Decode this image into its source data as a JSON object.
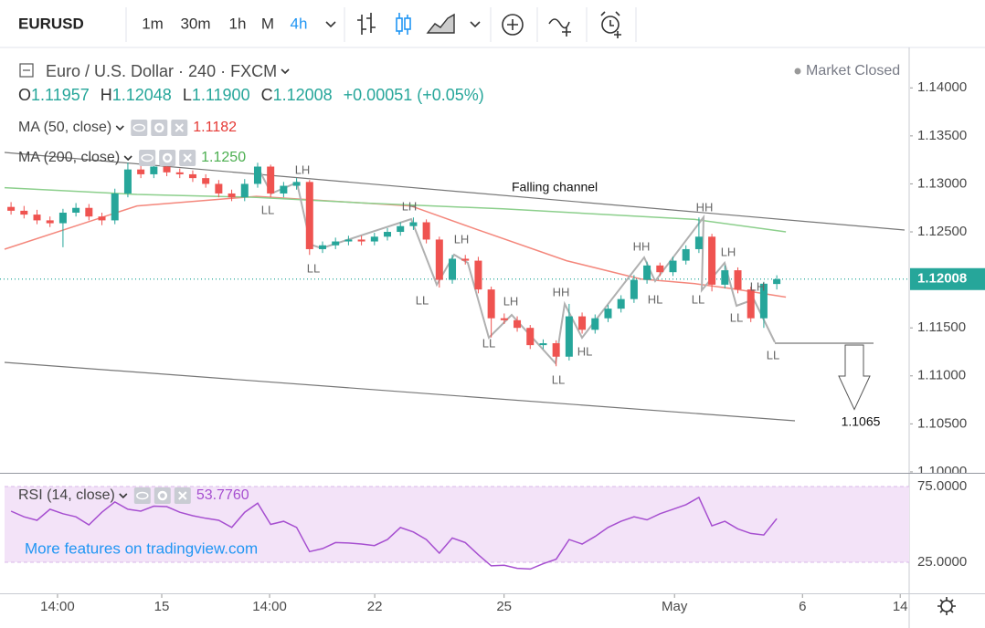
{
  "toolbar": {
    "symbol": "EURUSD",
    "intervals": [
      "1m",
      "30m",
      "1h",
      "M",
      "4h"
    ],
    "active_interval": "4h"
  },
  "chart_data": [
    {
      "type": "candlestick",
      "title": "Euro / U.S. Dollar · 240 · FXCM",
      "status": "Market Closed",
      "ohlc": [
        {
          "label": "O",
          "value": "1.11957"
        },
        {
          "label": "H",
          "value": "1.12048"
        },
        {
          "label": "L",
          "value": "1.11900"
        },
        {
          "label": "C",
          "value": "1.12008"
        }
      ],
      "change": "+0.00051 (+0.05%)",
      "open": [
        1.1276,
        1.1272,
        1.1268,
        1.1262,
        1.1259,
        1.127,
        1.1275,
        1.1266,
        1.1262,
        1.129,
        1.1315,
        1.131,
        1.1318,
        1.1312,
        1.131,
        1.1306,
        1.13,
        1.129,
        1.1286,
        1.13,
        1.1318,
        1.129,
        1.1298,
        1.1302,
        1.1232,
        1.1236,
        1.124,
        1.1242,
        1.124,
        1.1245,
        1.125,
        1.1256,
        1.126,
        1.1242,
        1.12,
        1.1222,
        1.122,
        1.119,
        1.116,
        1.1158,
        1.115,
        1.1132,
        1.1134,
        1.112,
        1.1162,
        1.1148,
        1.116,
        1.117,
        1.118,
        1.12,
        1.1215,
        1.1208,
        1.122,
        1.1232,
        1.1245,
        1.1195,
        1.121,
        1.119,
        1.116,
        1.11957
      ],
      "high": [
        1.1281,
        1.1277,
        1.1273,
        1.1266,
        1.1274,
        1.128,
        1.1279,
        1.127,
        1.1295,
        1.1322,
        1.132,
        1.1324,
        1.1322,
        1.1316,
        1.1314,
        1.131,
        1.1304,
        1.1294,
        1.1305,
        1.1322,
        1.132,
        1.1302,
        1.1306,
        1.1304,
        1.124,
        1.1244,
        1.1246,
        1.1246,
        1.1249,
        1.1254,
        1.126,
        1.1265,
        1.1263,
        1.1245,
        1.1226,
        1.1226,
        1.1224,
        1.1193,
        1.1165,
        1.1162,
        1.1153,
        1.1138,
        1.1137,
        1.1175,
        1.1166,
        1.1164,
        1.1174,
        1.1184,
        1.1205,
        1.1219,
        1.1218,
        1.1224,
        1.1236,
        1.1265,
        1.1248,
        1.1215,
        1.1213,
        1.1193,
        1.1198,
        1.12048
      ],
      "low": [
        1.1268,
        1.1264,
        1.1258,
        1.1255,
        1.1234,
        1.1266,
        1.1262,
        1.1257,
        1.1258,
        1.1286,
        1.1306,
        1.1306,
        1.1308,
        1.1306,
        1.1302,
        1.1296,
        1.1286,
        1.1282,
        1.1282,
        1.1296,
        1.1286,
        1.1286,
        1.1294,
        1.1226,
        1.1228,
        1.1232,
        1.1236,
        1.1236,
        1.1236,
        1.1241,
        1.1246,
        1.1252,
        1.1238,
        1.1192,
        1.1196,
        1.1216,
        1.1186,
        1.114,
        1.1154,
        1.1146,
        1.1128,
        1.1128,
        1.111,
        1.1116,
        1.1144,
        1.1144,
        1.1156,
        1.1166,
        1.1176,
        1.1196,
        1.1204,
        1.1204,
        1.1216,
        1.1228,
        1.1188,
        1.1191,
        1.1186,
        1.1156,
        1.115,
        1.119
      ],
      "close": [
        1.1272,
        1.1268,
        1.1262,
        1.1259,
        1.127,
        1.1275,
        1.1266,
        1.1262,
        1.129,
        1.1315,
        1.131,
        1.1318,
        1.1312,
        1.131,
        1.1306,
        1.13,
        1.129,
        1.1286,
        1.13,
        1.1318,
        1.129,
        1.1298,
        1.1302,
        1.1232,
        1.1236,
        1.124,
        1.1242,
        1.124,
        1.1245,
        1.125,
        1.1256,
        1.126,
        1.1242,
        1.12,
        1.1222,
        1.122,
        1.119,
        1.116,
        1.1158,
        1.115,
        1.1132,
        1.1134,
        1.112,
        1.1162,
        1.1148,
        1.116,
        1.117,
        1.118,
        1.12,
        1.1215,
        1.1208,
        1.122,
        1.1232,
        1.1245,
        1.1195,
        1.121,
        1.119,
        1.116,
        1.1196,
        1.12008
      ],
      "up_color": "#26a69a",
      "down_color": "#ef5350",
      "series": [
        {
          "name": "MA (50, close)",
          "legend_value": "1.1182",
          "color": "#f4877c",
          "x": [
            -0.5,
            9.7,
            18.9,
            22.4,
            30.8,
            35.8,
            42.8,
            48.5,
            52.7,
            55.5,
            59.7
          ],
          "values": [
            1.1232,
            1.1277,
            1.1287,
            1.1284,
            1.1277,
            1.1253,
            1.122,
            1.1201,
            1.1196,
            1.1191,
            1.1182
          ]
        },
        {
          "name": "MA (200, close)",
          "legend_value": "1.1250",
          "color": "#8ccf8c",
          "x": [
            -0.5,
            9.7,
            18.9,
            27.3,
            37.9,
            52.7,
            59.7
          ],
          "values": [
            1.1296,
            1.1289,
            1.1286,
            1.128,
            1.1274,
            1.1263,
            1.125
          ]
        }
      ],
      "last_price": 1.12008,
      "last_price_color": "#26a69a",
      "annotations": {
        "channel_label": "Falling channel",
        "pattern_labels": [
          "LH",
          "LL",
          "LL",
          "LH",
          "LH",
          "LL",
          "LH",
          "LL",
          "HH",
          "LL",
          "HL",
          "HH",
          "HL",
          "HH",
          "LL",
          "LH",
          "LH",
          "LL",
          "LL"
        ],
        "target": 1.1065
      },
      "xlim": [
        -0.5,
        69.2
      ],
      "xticks": [
        {
          "value": 3.58,
          "label": "14:00"
        },
        {
          "value": 11.61,
          "label": "15"
        },
        {
          "value": 19.92,
          "label": "14:00"
        },
        {
          "value": 28.02,
          "label": "22"
        },
        {
          "value": 37.99,
          "label": "25"
        },
        {
          "value": 51.12,
          "label": "May"
        },
        {
          "value": 60.98,
          "label": "6"
        },
        {
          "value": 68.51,
          "label": "14"
        }
      ],
      "ylim": [
        1.0999,
        1.1444
      ],
      "yticks": [
        {
          "value": 1.14,
          "label": "1.14000"
        },
        {
          "value": 1.135,
          "label": "1.13500"
        },
        {
          "value": 1.13,
          "label": "1.13000"
        },
        {
          "value": 1.125,
          "label": "1.12500"
        },
        {
          "value": 1.12,
          "label": "1.12000"
        },
        {
          "value": 1.115,
          "label": "1.11500"
        },
        {
          "value": 1.11,
          "label": "1.11000"
        },
        {
          "value": 1.105,
          "label": "1.10500"
        },
        {
          "value": 1.1,
          "label": "1.10000"
        }
      ]
    },
    {
      "type": "line",
      "series": [
        {
          "name": "RSI (14, close)",
          "legend_value": "53.7760",
          "color": "#a64fd0",
          "values": [
            58.7,
            55,
            52.7,
            60,
            57,
            55,
            49.7,
            58,
            64.8,
            60,
            58.7,
            62,
            61.7,
            58,
            55.7,
            54,
            52.7,
            48,
            58,
            64,
            50,
            52,
            48,
            32,
            34,
            38,
            37.7,
            37,
            36,
            40,
            47.9,
            45,
            40,
            31,
            41,
            38,
            30,
            22.6,
            23,
            21,
            20.5,
            24,
            27,
            40,
            37,
            42,
            48,
            52,
            55,
            53,
            57,
            60,
            63,
            67.8,
            49,
            52,
            47,
            44,
            43,
            53.776
          ]
        }
      ],
      "band_color": "#f3e3f8",
      "watermark": "More features on tradingview.com",
      "xlim": [
        -0.5,
        69.2
      ],
      "ylim": [
        4.5,
        82.8
      ],
      "yticks": [
        {
          "value": 75,
          "label": "75.0000"
        },
        {
          "value": 25,
          "label": "25.0000"
        }
      ]
    }
  ]
}
